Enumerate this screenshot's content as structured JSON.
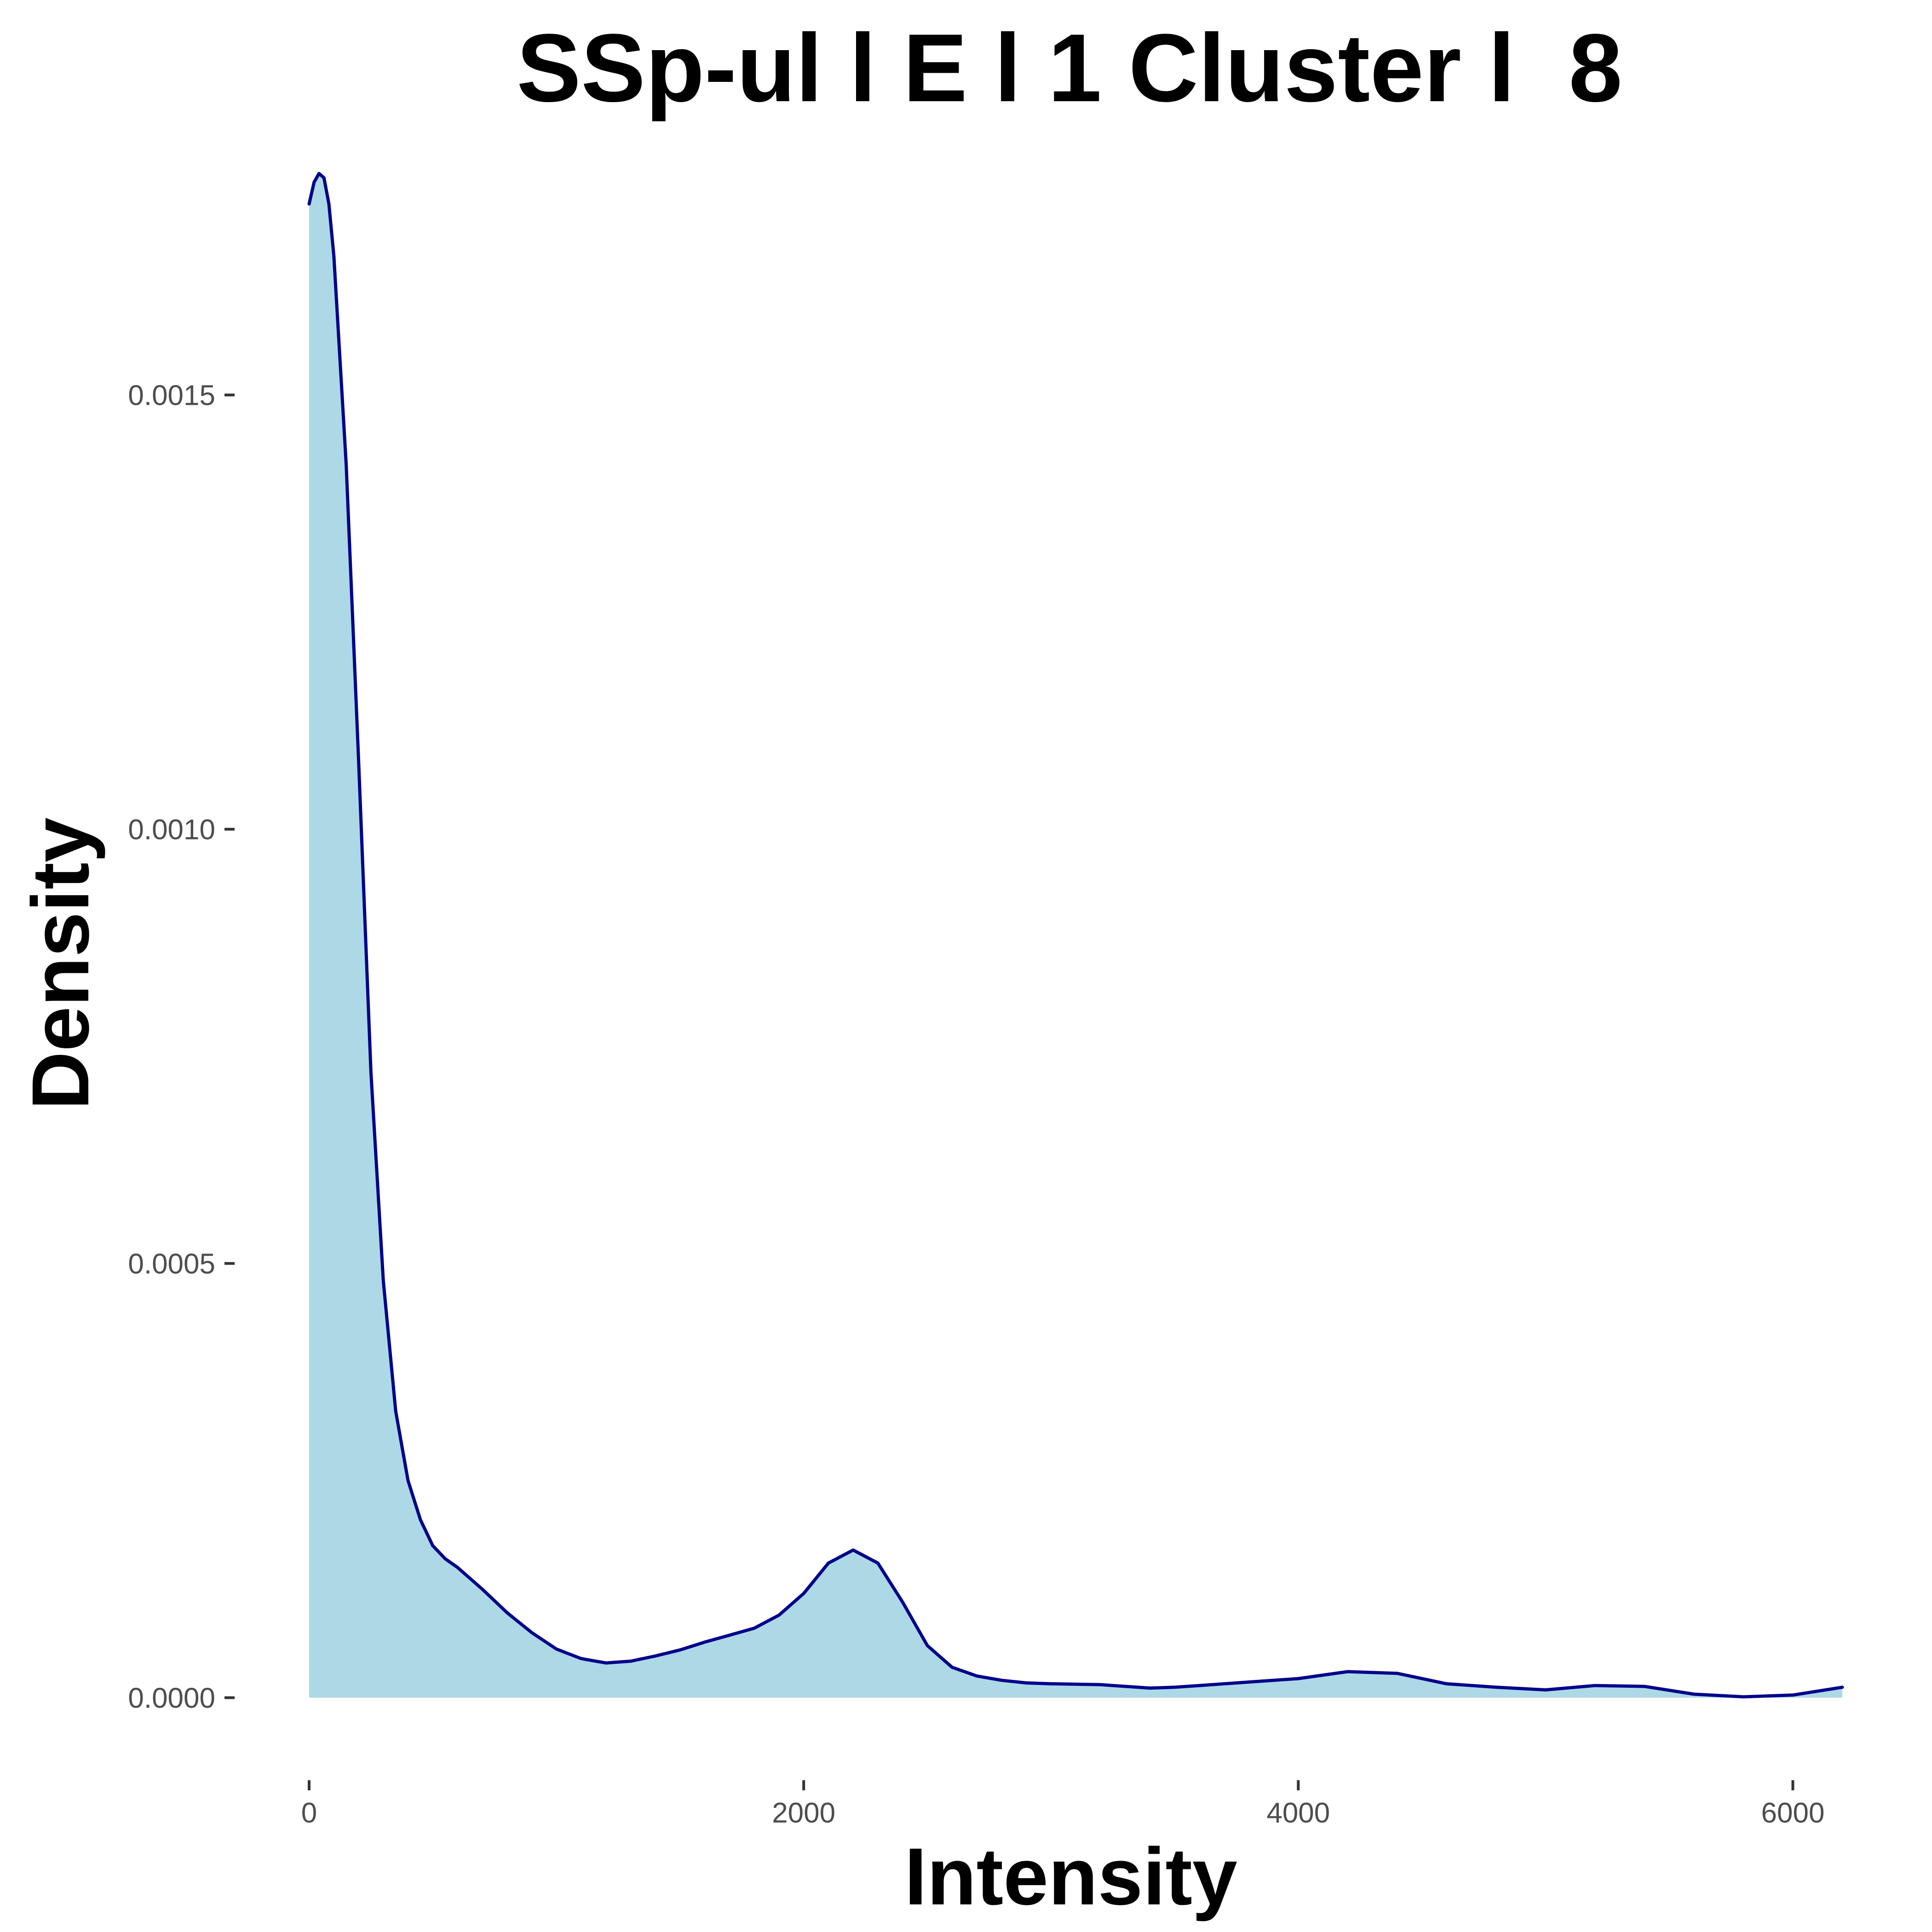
{
  "chart_data": {
    "type": "area",
    "title": "SSp-ul l E l 1 Cluster l  8",
    "xlabel": "Intensity",
    "ylabel": "Density",
    "xlim": [
      0,
      6200
    ],
    "ylim": [
      -5e-05,
      0.00178
    ],
    "x_ticks": [
      {
        "value": 0,
        "label": "0"
      },
      {
        "value": 2000,
        "label": "2000"
      },
      {
        "value": 4000,
        "label": "4000"
      },
      {
        "value": 6000,
        "label": "6000"
      }
    ],
    "y_ticks": [
      {
        "value": 0,
        "label": "0.0000"
      },
      {
        "value": 0.0005,
        "label": "0.0005"
      },
      {
        "value": 0.001,
        "label": "0.0010"
      },
      {
        "value": 0.0015,
        "label": "0.0015"
      }
    ],
    "grid": false,
    "fill_color": "#add8e6",
    "line_color": "#00008b",
    "series": [
      {
        "x": [
          0,
          20,
          40,
          60,
          80,
          100,
          150,
          200,
          250,
          300,
          350,
          400,
          450,
          500,
          550,
          600,
          700,
          800,
          900,
          1000,
          1100,
          1200,
          1300,
          1400,
          1500,
          1600,
          1700,
          1800,
          1900,
          2000,
          2100,
          2200,
          2300,
          2400,
          2500,
          2600,
          2700,
          2800,
          2900,
          3000,
          3200,
          3400,
          3500,
          3600,
          3800,
          4000,
          4200,
          4400,
          4500,
          4600,
          4800,
          5000,
          5200,
          5400,
          5600,
          5800,
          6000,
          6200
        ],
        "y": [
          0.00172,
          0.001745,
          0.001755,
          0.00175,
          0.00172,
          0.00166,
          0.00142,
          0.00108,
          0.00072,
          0.00048,
          0.00033,
          0.00025,
          0.000205,
          0.000175,
          0.00016,
          0.00015,
          0.000125,
          9.8e-05,
          7.5e-05,
          5.6e-05,
          4.5e-05,
          4e-05,
          4.2e-05,
          4.8e-05,
          5.5e-05,
          6.4e-05,
          7.2e-05,
          8e-05,
          9.5e-05,
          0.00012,
          0.000155,
          0.00017,
          0.000155,
          0.00011,
          6e-05,
          3.5e-05,
          2.5e-05,
          2e-05,
          1.7e-05,
          1.6e-05,
          1.5e-05,
          1.1e-05,
          1.2e-05,
          1.4e-05,
          1.8e-05,
          2.2e-05,
          3e-05,
          2.8e-05,
          2.2e-05,
          1.6e-05,
          1.2e-05,
          9e-06,
          1.4e-05,
          1.3e-05,
          4e-06,
          1e-06,
          3e-06,
          1.2e-05
        ]
      }
    ]
  }
}
